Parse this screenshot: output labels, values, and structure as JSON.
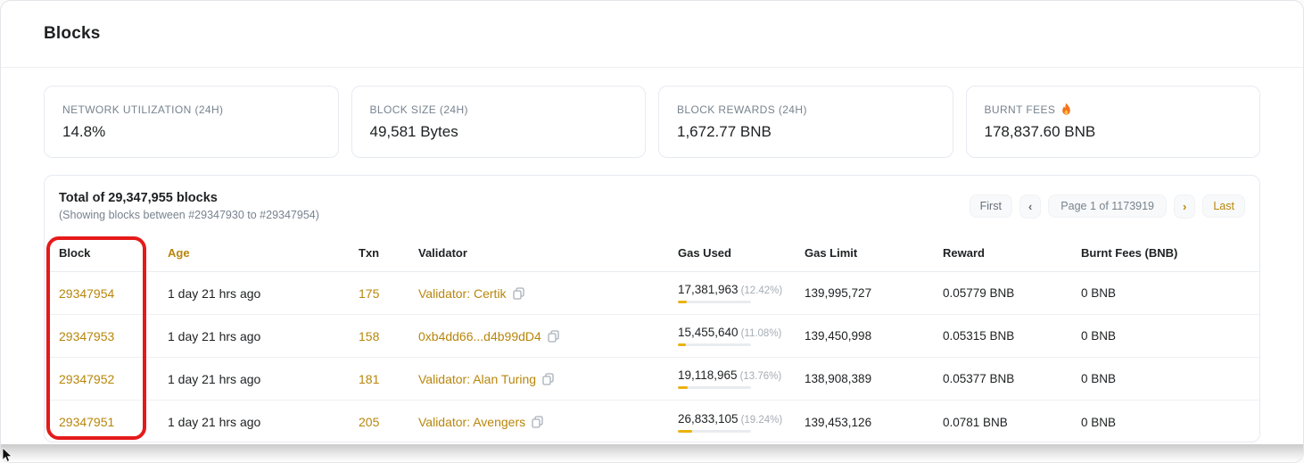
{
  "page": {
    "title": "Blocks"
  },
  "stats": [
    {
      "label": "NETWORK UTILIZATION (24H)",
      "value": "14.8%"
    },
    {
      "label": "BLOCK SIZE (24H)",
      "value": "49,581 Bytes"
    },
    {
      "label": "BLOCK REWARDS (24H)",
      "value": "1,672.77 BNB"
    },
    {
      "label": "BURNT FEES",
      "value": "178,837.60 BNB",
      "icon": "flame-icon"
    }
  ],
  "table": {
    "summary": {
      "total": "Total of 29,347,955 blocks",
      "showing": "(Showing blocks between #29347930 to #29347954)"
    },
    "pagination": {
      "first": "First",
      "prev": "‹",
      "page": "Page 1 of 1173919",
      "next": "›",
      "last": "Last"
    },
    "columns": [
      "Block",
      "Age",
      "Txn",
      "Validator",
      "Gas Used",
      "Gas Limit",
      "Reward",
      "Burnt Fees (BNB)"
    ],
    "rows": [
      {
        "block": "29347954",
        "age": "1 day 21 hrs ago",
        "txn": "175",
        "validator": "Validator: Certik",
        "gas_used": "17,381,963",
        "gas_used_pct_label": "(12.42%)",
        "gas_used_pct": 12.42,
        "gas_limit": "139,995,727",
        "reward": "0.05779 BNB",
        "burnt_fees": "0 BNB"
      },
      {
        "block": "29347953",
        "age": "1 day 21 hrs ago",
        "txn": "158",
        "validator": "0xb4dd66...d4b99dD4",
        "gas_used": "15,455,640",
        "gas_used_pct_label": "(11.08%)",
        "gas_used_pct": 11.08,
        "gas_limit": "139,450,998",
        "reward": "0.05315 BNB",
        "burnt_fees": "0 BNB"
      },
      {
        "block": "29347952",
        "age": "1 day 21 hrs ago",
        "txn": "181",
        "validator": "Validator: Alan Turing",
        "gas_used": "19,118,965",
        "gas_used_pct_label": "(13.76%)",
        "gas_used_pct": 13.76,
        "gas_limit": "138,908,389",
        "reward": "0.05377 BNB",
        "burnt_fees": "0 BNB"
      },
      {
        "block": "29347951",
        "age": "1 day 21 hrs ago",
        "txn": "205",
        "validator": "Validator: Avengers",
        "gas_used": "26,833,105",
        "gas_used_pct_label": "(19.24%)",
        "gas_used_pct": 19.24,
        "gas_limit": "139,453,126",
        "reward": "0.0781 BNB",
        "burnt_fees": "0 BNB"
      }
    ],
    "annotation": {
      "target": "block-column",
      "shape": "rounded-rect"
    }
  },
  "icons": {
    "flame": "flame-icon",
    "copy": "copy-icon",
    "cursor": "mouse-cursor"
  },
  "colors": {
    "accent": "#b8860b",
    "bar": "#ecb20d",
    "red": "#e51a1a"
  }
}
